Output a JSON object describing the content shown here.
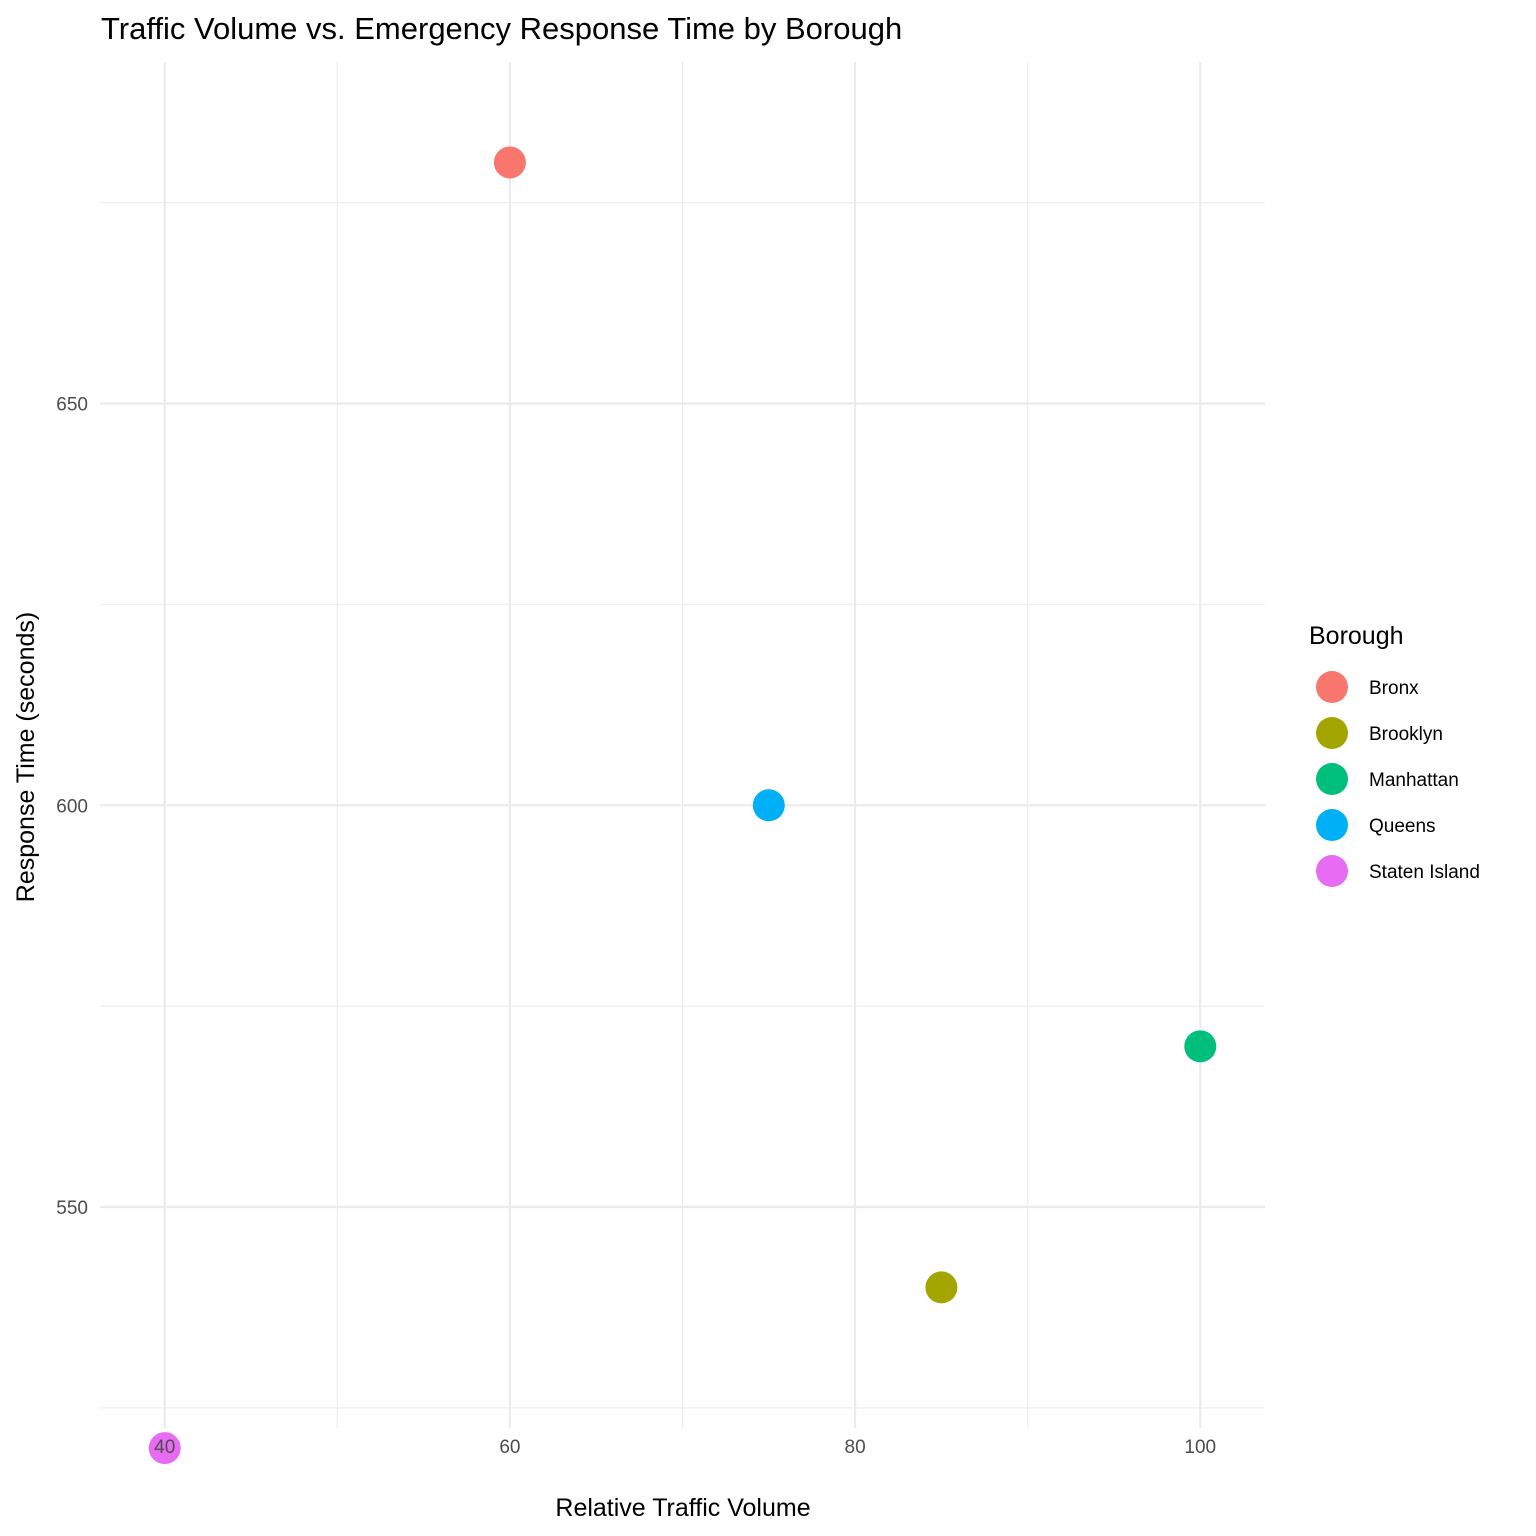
{
  "chart_data": {
    "type": "scatter",
    "title": "Traffic Volume vs. Emergency Response Time by Borough",
    "xlabel": "Relative Traffic Volume",
    "ylabel": "Response Time (seconds)",
    "xlim": [
      36.25,
      103.75
    ],
    "ylim": [
      522.5,
      692.5
    ],
    "x_ticks": [
      40,
      60,
      80,
      100
    ],
    "x_minor_ticks": [
      50,
      70,
      90
    ],
    "y_ticks": [
      550,
      600,
      650
    ],
    "y_minor_ticks": [
      525,
      575,
      625,
      675
    ],
    "grid": true,
    "legend": {
      "title": "Borough",
      "placement": "right"
    },
    "series": [
      {
        "name": "Bronx",
        "color": "#F8766D",
        "x": [
          60
        ],
        "y": [
          680
        ]
      },
      {
        "name": "Brooklyn",
        "color": "#A3A500",
        "x": [
          85
        ],
        "y": [
          540
        ]
      },
      {
        "name": "Manhattan",
        "color": "#00BF7D",
        "x": [
          100
        ],
        "y": [
          570
        ]
      },
      {
        "name": "Queens",
        "color": "#00B0F6",
        "x": [
          75
        ],
        "y": [
          600
        ]
      },
      {
        "name": "Staten Island",
        "color": "#E76BF3",
        "x": [
          40
        ],
        "y": [
          520
        ]
      }
    ]
  }
}
